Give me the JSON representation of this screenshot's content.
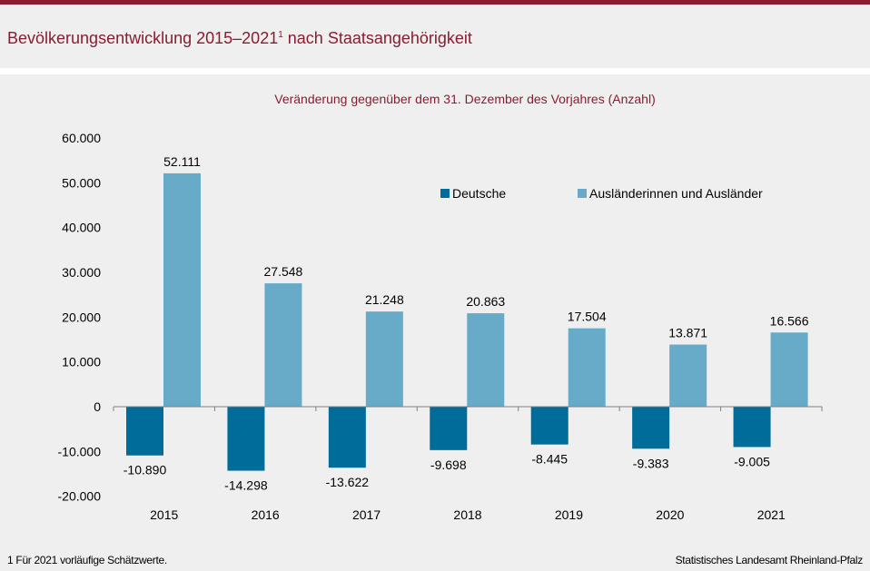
{
  "header": {
    "title_main": "Bevölkerungsentwicklung 2015–2021",
    "title_sup": "1",
    "title_rest": " nach Staatsangehörigkeit"
  },
  "footer": {
    "note": "1 Für 2021 vorläufige  Schätzwerte.",
    "source": "Statistisches Landesamt Rheinland-Pfalz"
  },
  "colors": {
    "brand": "#8a1c32",
    "deutsche": "#006c9a",
    "auslaender": "#67abc8"
  },
  "chart_data": {
    "type": "bar",
    "title": "Veränderung gegenüber dem 31. Dezember des Vorjahres (Anzahl)",
    "categories": [
      "2015",
      "2016",
      "2017",
      "2018",
      "2019",
      "2020",
      "2021"
    ],
    "series": [
      {
        "name": "Deutsche",
        "values": [
          -10890,
          -14298,
          -13622,
          -9698,
          -8445,
          -9383,
          -9005
        ],
        "labels": [
          "-10.890",
          "-14.298",
          "-13.622",
          "-9.698",
          "-8.445",
          "-9.383",
          "-9.005"
        ]
      },
      {
        "name": "Ausländerinnen und Ausländer",
        "values": [
          52111,
          27548,
          21248,
          20863,
          17504,
          13871,
          16566
        ],
        "labels": [
          "52.111",
          "27.548",
          "21.248",
          "20.863",
          "17.504",
          "13.871",
          "16.566"
        ]
      }
    ],
    "ylim": [
      -20000,
      60000
    ],
    "yticks": [
      60000,
      50000,
      40000,
      30000,
      20000,
      10000,
      0,
      -10000,
      -20000
    ],
    "ytick_labels": [
      "60.000",
      "50.000",
      "40.000",
      "30.000",
      "20.000",
      "10.000",
      "0",
      "-10.000",
      "-20.000"
    ],
    "legend": "top-right",
    "grid": false
  }
}
